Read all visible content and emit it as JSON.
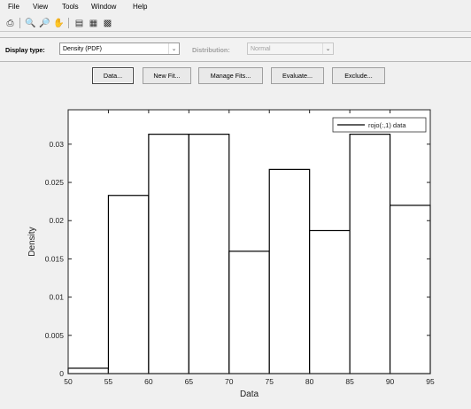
{
  "menu": [
    "File",
    "View",
    "Tools",
    "Window",
    "Help"
  ],
  "toolbar_icons": [
    "print-icon",
    "zoom-in-icon",
    "zoom-out-icon",
    "pan-icon",
    "legend-icon",
    "grid-icon",
    "axes-limits-icon"
  ],
  "controls": {
    "display_type_label": "Display type:",
    "display_type_value": "Density (PDF)",
    "distribution_label": "Distribution:",
    "distribution_value": "Normal"
  },
  "buttons": [
    "Data...",
    "New Fit...",
    "Manage Fits...",
    "Evaluate...",
    "Exclude..."
  ],
  "chart_data": {
    "type": "bar",
    "xlabel": "Data",
    "ylabel": "Density",
    "xlim": [
      50,
      95
    ],
    "ylim": [
      0,
      0.0345
    ],
    "xticks": [
      "50",
      "55",
      "60",
      "65",
      "70",
      "75",
      "80",
      "85",
      "90",
      "95"
    ],
    "yticks": [
      "0",
      "0.005",
      "0.01",
      "0.015",
      "0.02",
      "0.025",
      "0.03"
    ],
    "bin_edges": [
      50,
      55,
      60,
      65,
      70,
      75,
      80,
      85,
      90,
      95
    ],
    "values": [
      0.0007,
      0.0233,
      0.0313,
      0.0313,
      0.016,
      0.0267,
      0.0187,
      0.0313,
      0.022
    ],
    "legend": "rojo(:,1) data",
    "legend_position": "top-right"
  }
}
